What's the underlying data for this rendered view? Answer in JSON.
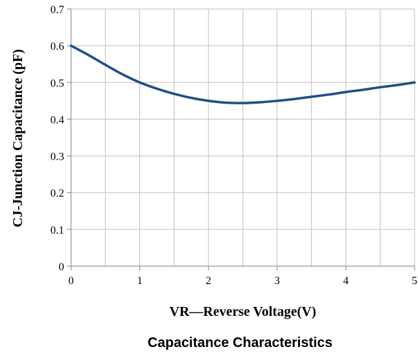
{
  "chart_data": {
    "type": "line",
    "title": "Capacitance Characteristics",
    "xlabel": "VR—Reverse Voltage(V)",
    "ylabel": "CJ-Junction Capacitance (pF)",
    "xlim": [
      0,
      5
    ],
    "ylim": [
      0,
      0.7
    ],
    "xticks": [
      "0",
      "1",
      "2",
      "3",
      "4",
      "5"
    ],
    "yticks": [
      "0",
      "0.1",
      "0.2",
      "0.3",
      "0.4",
      "0.5",
      "0.6",
      "0.7"
    ],
    "grid": true,
    "series": [
      {
        "color": "#1f4e86",
        "x": [
          0,
          0.25,
          0.5,
          0.75,
          1.0,
          1.25,
          1.5,
          1.75,
          2.0,
          2.25,
          2.5,
          2.75,
          3.0,
          3.25,
          3.5,
          3.75,
          4.0,
          4.25,
          4.5,
          4.75,
          5.0
        ],
        "y": [
          0.6,
          0.575,
          0.548,
          0.522,
          0.5,
          0.483,
          0.469,
          0.458,
          0.45,
          0.445,
          0.444,
          0.446,
          0.45,
          0.455,
          0.461,
          0.467,
          0.474,
          0.48,
          0.487,
          0.493,
          0.5
        ]
      }
    ]
  }
}
